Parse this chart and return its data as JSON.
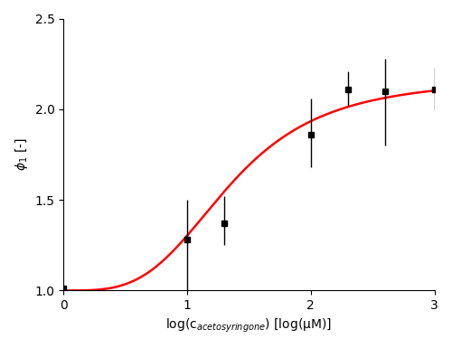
{
  "title": "",
  "xlabel": "log(c$_{acetosyringone}$) [log(μM)]",
  "ylabel": "$\\phi_1$ [-]",
  "xlim": [
    0,
    3
  ],
  "ylim": [
    1.0,
    2.5
  ],
  "xticks": [
    0,
    1,
    2,
    3
  ],
  "yticks": [
    1.0,
    1.5,
    2.0,
    2.5
  ],
  "data_x": [
    0,
    1.0,
    1.3,
    2.0,
    2.3,
    2.6,
    3.0
  ],
  "data_y": [
    1.01,
    1.28,
    1.37,
    1.86,
    2.11,
    2.1,
    2.11
  ],
  "data_yerr_low": [
    0.0,
    0.28,
    0.12,
    0.18,
    0.09,
    0.3,
    0.11
  ],
  "data_yerr_high": [
    0.0,
    0.22,
    0.15,
    0.2,
    0.1,
    0.18,
    0.12
  ],
  "hill_ymin": 1.0,
  "hill_ymax": 2.17,
  "hill_ec50": 1.35,
  "hill_n": 3.5,
  "curve_color": "#ff0000",
  "marker_color": "#000000",
  "marker_size": 5,
  "line_width": 1.8,
  "background_color": "#ffffff",
  "xlabel_fontsize": 10,
  "ylabel_fontsize": 10,
  "tick_fontsize": 10
}
